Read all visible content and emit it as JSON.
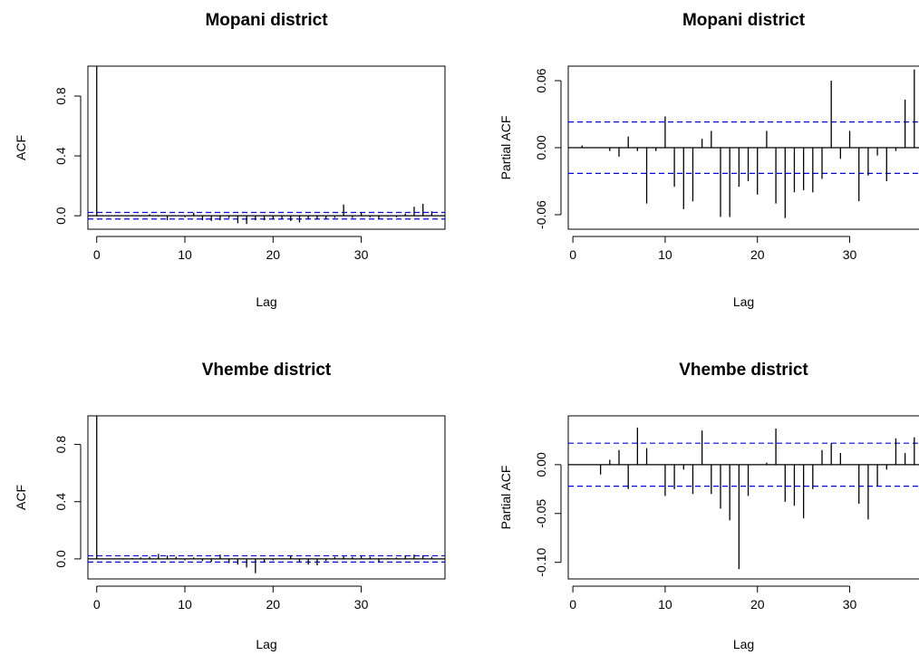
{
  "chart_data": [
    {
      "type": "bar",
      "title": "Mopani district",
      "xlabel": "Lag",
      "ylabel": "ACF",
      "xlim": [
        -1,
        39.5
      ],
      "ylim": [
        -0.09,
        1.0
      ],
      "xticks": [
        0,
        10,
        20,
        30
      ],
      "yticks": [
        0.0,
        0.4,
        0.8
      ],
      "ytick_labels": [
        "0.0",
        "0.4",
        "0.8"
      ],
      "conf_limit": 0.022,
      "lags": [
        0,
        1,
        2,
        3,
        4,
        5,
        6,
        7,
        8,
        9,
        10,
        11,
        12,
        13,
        14,
        15,
        16,
        17,
        18,
        19,
        20,
        21,
        22,
        23,
        24,
        25,
        26,
        27,
        28,
        29,
        30,
        31,
        32,
        33,
        34,
        35,
        36,
        37,
        38
      ],
      "values": [
        1.0,
        0.0,
        0.002,
        0.001,
        0.005,
        -0.003,
        0.01,
        -0.005,
        -0.03,
        0.0,
        -0.01,
        0.02,
        -0.03,
        -0.035,
        -0.03,
        -0.015,
        -0.05,
        -0.055,
        -0.03,
        -0.03,
        -0.025,
        -0.02,
        -0.035,
        -0.045,
        -0.02,
        -0.025,
        -0.02,
        -0.015,
        0.075,
        -0.015,
        0.022,
        -0.01,
        -0.02,
        -0.005,
        -0.01,
        0.015,
        0.06,
        0.08,
        0.03
      ]
    },
    {
      "type": "bar",
      "title": "Mopani district",
      "xlabel": "Lag",
      "ylabel": "Partial ACF",
      "xlim": [
        -0.5,
        38
      ],
      "ylim": [
        -0.073,
        0.073
      ],
      "xticks": [
        0,
        10,
        20,
        30
      ],
      "yticks": [
        -0.06,
        0.0,
        0.06
      ],
      "ytick_labels": [
        "-0.06",
        "0.00",
        "0.06"
      ],
      "conf_limit": 0.023,
      "lags": [
        1,
        2,
        3,
        4,
        5,
        6,
        7,
        8,
        9,
        10,
        11,
        12,
        13,
        14,
        15,
        16,
        17,
        18,
        19,
        20,
        21,
        22,
        23,
        24,
        25,
        26,
        27,
        28,
        29,
        30,
        31,
        32,
        33,
        34,
        35,
        36,
        37,
        38
      ],
      "values": [
        0.002,
        0.0,
        0.0,
        -0.003,
        -0.008,
        0.01,
        -0.003,
        -0.05,
        -0.003,
        0.028,
        -0.035,
        -0.055,
        -0.048,
        0.008,
        0.015,
        -0.062,
        -0.062,
        -0.035,
        -0.03,
        -0.042,
        0.015,
        -0.05,
        -0.063,
        -0.04,
        -0.038,
        -0.04,
        -0.028,
        0.06,
        -0.01,
        0.015,
        -0.048,
        -0.025,
        -0.007,
        -0.03,
        -0.003,
        0.043,
        0.07,
        0.027
      ]
    },
    {
      "type": "bar",
      "title": "Vhembe district",
      "xlabel": "Lag",
      "ylabel": "ACF",
      "xlim": [
        -1,
        39.5
      ],
      "ylim": [
        -0.14,
        1.0
      ],
      "xticks": [
        0,
        10,
        20,
        30
      ],
      "yticks": [
        0.0,
        0.4,
        0.8
      ],
      "ytick_labels": [
        "0.0",
        "0.4",
        "0.8"
      ],
      "conf_limit": 0.022,
      "lags": [
        0,
        1,
        2,
        3,
        4,
        5,
        6,
        7,
        8,
        9,
        10,
        11,
        12,
        13,
        14,
        15,
        16,
        17,
        18,
        19,
        20,
        21,
        22,
        23,
        24,
        25,
        26,
        27,
        28,
        29,
        30,
        31,
        32,
        33,
        34,
        35,
        36,
        37,
        38
      ],
      "values": [
        1.0,
        0.0,
        0.002,
        -0.005,
        0.005,
        0.01,
        0.015,
        0.035,
        0.025,
        0.015,
        -0.01,
        0.01,
        -0.015,
        -0.02,
        0.03,
        -0.03,
        -0.04,
        -0.06,
        -0.1,
        -0.02,
        -0.01,
        0.0,
        0.025,
        -0.02,
        -0.04,
        -0.045,
        -0.015,
        0.015,
        0.02,
        0.015,
        0.02,
        0.015,
        -0.02,
        0.005,
        0.01,
        0.025,
        0.03,
        0.025,
        0.015
      ]
    },
    {
      "type": "bar",
      "title": "Vhembe district",
      "xlabel": "Lag",
      "ylabel": "Partial ACF",
      "xlim": [
        -0.5,
        38
      ],
      "ylim": [
        -0.117,
        0.05
      ],
      "xticks": [
        0,
        10,
        20,
        30
      ],
      "yticks": [
        -0.1,
        -0.05,
        0.0
      ],
      "ytick_labels": [
        "-0.10",
        "-0.05",
        "0.00"
      ],
      "conf_limit": 0.022,
      "lags": [
        1,
        2,
        3,
        4,
        5,
        6,
        7,
        8,
        9,
        10,
        11,
        12,
        13,
        14,
        15,
        16,
        17,
        18,
        19,
        20,
        21,
        22,
        23,
        24,
        25,
        26,
        27,
        28,
        29,
        30,
        31,
        32,
        33,
        34,
        35,
        36,
        37,
        38
      ],
      "values": [
        0.0,
        0.0,
        -0.01,
        0.005,
        0.015,
        -0.025,
        0.038,
        0.017,
        0.0,
        -0.032,
        -0.025,
        -0.005,
        -0.03,
        0.035,
        -0.03,
        -0.045,
        -0.057,
        -0.107,
        -0.032,
        0.0,
        0.002,
        0.037,
        -0.038,
        -0.042,
        -0.055,
        -0.025,
        0.015,
        0.022,
        0.012,
        0.0,
        -0.04,
        -0.056,
        -0.022,
        -0.005,
        0.027,
        0.012,
        0.028,
        -0.02
      ]
    }
  ]
}
